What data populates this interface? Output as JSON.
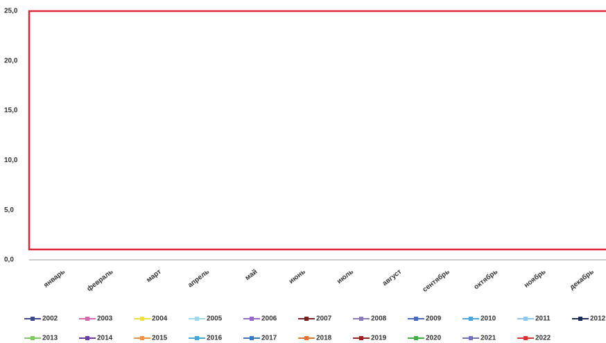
{
  "chart_data": {
    "type": "line",
    "categories": [
      "январь",
      "февраль",
      "март",
      "апрель",
      "май",
      "июнь",
      "июль",
      "август",
      "сентябрь",
      "октябрь",
      "ноябрь",
      "декабрь"
    ],
    "ylim": [
      0,
      25
    ],
    "yticks": [
      {
        "value": 0,
        "label": "0,0"
      },
      {
        "value": 5,
        "label": "5,0"
      },
      {
        "value": 10,
        "label": "10,0"
      },
      {
        "value": 15,
        "label": "15,0"
      },
      {
        "value": 20,
        "label": "20,0"
      },
      {
        "value": 25,
        "label": "25,0"
      }
    ],
    "legend": "bottom",
    "series": [
      {
        "name": "2002",
        "color": "#3c4a8c",
        "values": [
          null,
          null,
          null,
          null,
          null,
          null,
          null,
          null,
          null,
          null,
          null,
          null
        ]
      },
      {
        "name": "2003",
        "color": "#d966b0",
        "values": [
          null,
          null,
          null,
          null,
          null,
          null,
          null,
          null,
          null,
          null,
          null,
          null
        ]
      },
      {
        "name": "2004",
        "color": "#f0e040",
        "values": [
          null,
          null,
          null,
          null,
          null,
          null,
          null,
          null,
          null,
          null,
          null,
          null
        ]
      },
      {
        "name": "2005",
        "color": "#9fd8f0",
        "values": [
          null,
          null,
          null,
          null,
          null,
          null,
          null,
          null,
          null,
          null,
          null,
          null
        ]
      },
      {
        "name": "2006",
        "color": "#9966cc",
        "values": [
          null,
          null,
          null,
          null,
          null,
          null,
          null,
          null,
          null,
          null,
          null,
          null
        ]
      },
      {
        "name": "2007",
        "color": "#7a1f1f",
        "values": [
          null,
          null,
          null,
          null,
          null,
          null,
          null,
          null,
          null,
          null,
          null,
          null
        ]
      },
      {
        "name": "2008",
        "color": "#8a7ab8",
        "values": [
          null,
          null,
          null,
          null,
          null,
          null,
          null,
          null,
          null,
          null,
          null,
          null
        ]
      },
      {
        "name": "2009",
        "color": "#4a6ac8",
        "values": [
          null,
          null,
          null,
          null,
          null,
          null,
          null,
          null,
          null,
          null,
          null,
          null
        ]
      },
      {
        "name": "2010",
        "color": "#4aa8e0",
        "values": [
          null,
          null,
          null,
          null,
          null,
          null,
          null,
          null,
          null,
          null,
          null,
          null
        ]
      },
      {
        "name": "2011",
        "color": "#8cc8f0",
        "values": [
          null,
          null,
          null,
          null,
          null,
          null,
          null,
          null,
          null,
          null,
          null,
          null
        ]
      },
      {
        "name": "2012",
        "color": "#1a2a5a",
        "values": [
          null,
          null,
          null,
          null,
          null,
          null,
          null,
          null,
          null,
          null,
          null,
          null
        ]
      },
      {
        "name": "2013",
        "color": "#80c860",
        "values": [
          null,
          null,
          null,
          null,
          null,
          null,
          null,
          null,
          null,
          null,
          null,
          null
        ]
      },
      {
        "name": "2014",
        "color": "#6a3ab0",
        "values": [
          null,
          null,
          null,
          null,
          null,
          null,
          null,
          null,
          null,
          null,
          null,
          null
        ]
      },
      {
        "name": "2015",
        "color": "#f09040",
        "values": [
          null,
          null,
          null,
          null,
          null,
          null,
          null,
          null,
          null,
          null,
          null,
          null
        ]
      },
      {
        "name": "2016",
        "color": "#40a8e0",
        "values": [
          null,
          null,
          null,
          null,
          null,
          null,
          null,
          null,
          null,
          null,
          null,
          null
        ]
      },
      {
        "name": "2017",
        "color": "#3a78c8",
        "values": [
          null,
          null,
          null,
          null,
          null,
          null,
          null,
          null,
          null,
          null,
          null,
          null
        ]
      },
      {
        "name": "2018",
        "color": "#e87030",
        "values": [
          null,
          null,
          null,
          null,
          null,
          null,
          null,
          null,
          null,
          null,
          null,
          null
        ]
      },
      {
        "name": "2019",
        "color": "#a02020",
        "values": [
          null,
          null,
          null,
          null,
          null,
          null,
          null,
          null,
          null,
          null,
          null,
          null
        ]
      },
      {
        "name": "2020",
        "color": "#40b040",
        "values": [
          null,
          null,
          null,
          null,
          null,
          null,
          null,
          null,
          null,
          null,
          null,
          null
        ]
      },
      {
        "name": "2021",
        "color": "#7070c0",
        "values": [
          null,
          null,
          null,
          null,
          null,
          null,
          null,
          null,
          null,
          null,
          null,
          null
        ]
      },
      {
        "name": "2022",
        "color": "#e03030",
        "values": [
          null,
          null,
          null,
          null,
          null,
          null,
          null,
          null,
          null,
          null,
          null,
          null
        ]
      }
    ]
  }
}
